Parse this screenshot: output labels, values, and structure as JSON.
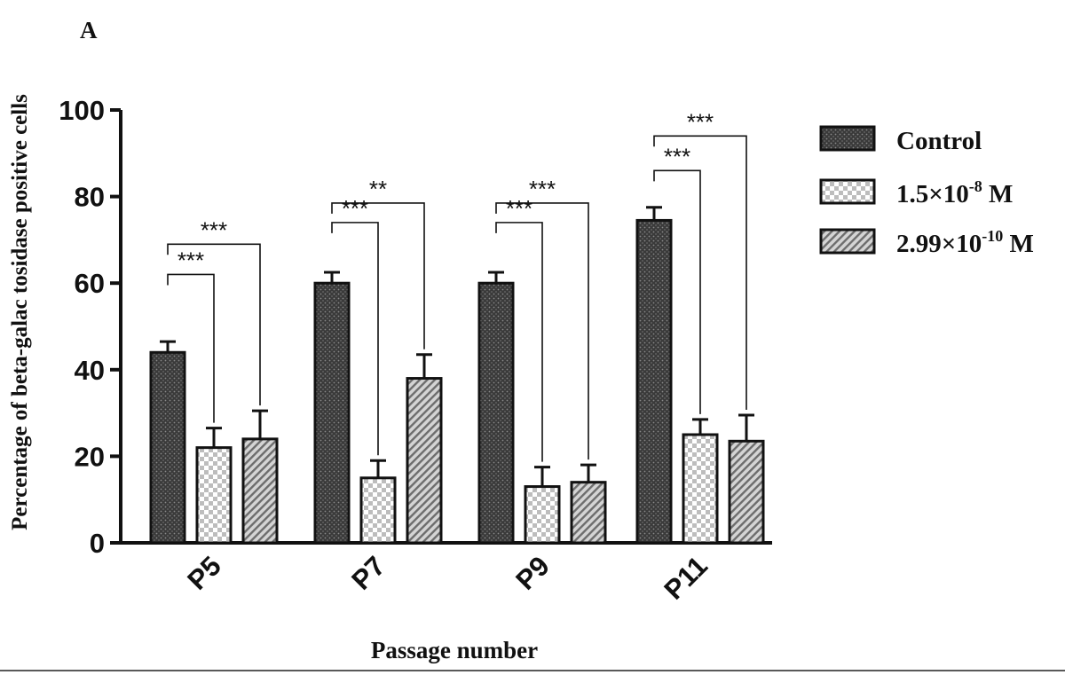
{
  "panel_label": "A",
  "chart_data": {
    "type": "bar",
    "ylabel": "Percentage of beta-galac tosidase positive cells",
    "xlabel": "Passage number",
    "ylim": [
      0,
      100
    ],
    "yticks": [
      0,
      20,
      40,
      60,
      80,
      100
    ],
    "categories": [
      "P5",
      "P7",
      "P9",
      "P11"
    ],
    "series": [
      {
        "name": "Control",
        "legend_main": "Control",
        "legend_sup": "",
        "legend_suffix": "",
        "values": [
          44,
          60,
          60,
          74.5
        ],
        "errors": [
          2.5,
          2.5,
          2.5,
          3
        ]
      },
      {
        "name": "1.5×10-8 M",
        "legend_main": "1.5×10",
        "legend_sup": "-8",
        "legend_suffix": " M",
        "values": [
          22,
          15,
          13,
          25
        ],
        "errors": [
          4.5,
          4,
          4.5,
          3.5
        ]
      },
      {
        "name": "2.99×10-10 M",
        "legend_main": "2.99×10",
        "legend_sup": "-10",
        "legend_suffix": " M",
        "values": [
          24,
          38,
          14,
          23.5
        ],
        "errors": [
          6.5,
          5.5,
          4,
          6
        ]
      }
    ],
    "significance": [
      {
        "category": "P5",
        "comparison_series": 1,
        "label": "***"
      },
      {
        "category": "P5",
        "comparison_series": 2,
        "label": "***"
      },
      {
        "category": "P7",
        "comparison_series": 1,
        "label": "***"
      },
      {
        "category": "P7",
        "comparison_series": 2,
        "label": "**"
      },
      {
        "category": "P9",
        "comparison_series": 1,
        "label": "***"
      },
      {
        "category": "P9",
        "comparison_series": 2,
        "label": "***"
      },
      {
        "category": "P11",
        "comparison_series": 1,
        "label": "***"
      },
      {
        "category": "P11",
        "comparison_series": 2,
        "label": "***"
      }
    ],
    "legend_position": "right",
    "grid": false
  }
}
